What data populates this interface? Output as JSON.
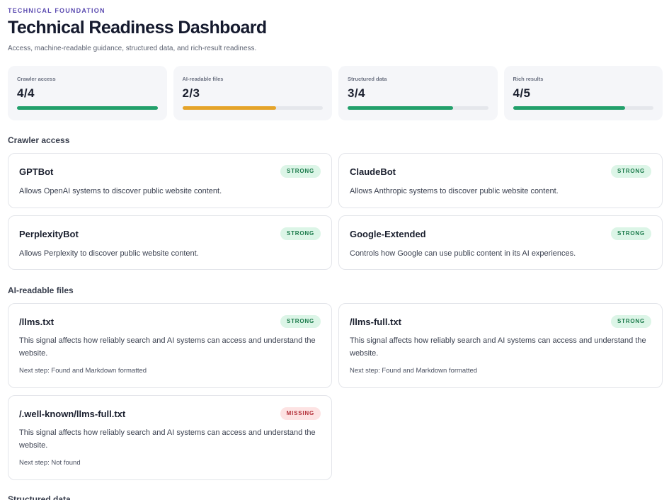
{
  "header": {
    "eyebrow": "TECHNICAL FOUNDATION",
    "title": "Technical Readiness Dashboard",
    "subtitle": "Access, machine-readable guidance, structured data, and rich-result readiness."
  },
  "metrics": [
    {
      "label": "Crawler access",
      "value": "4/4",
      "progress": 1.0,
      "color": "#22a06b"
    },
    {
      "label": "AI-readable files",
      "value": "2/3",
      "progress": 0.667,
      "color": "#e5a42a"
    },
    {
      "label": "Structured data",
      "value": "3/4",
      "progress": 0.75,
      "color": "#22a06b"
    },
    {
      "label": "Rich results",
      "value": "4/5",
      "progress": 0.8,
      "color": "#22a06b"
    }
  ],
  "sections": {
    "crawler_access": "Crawler access",
    "ai_readable_files": "AI-readable files",
    "structured_data": "Structured data"
  },
  "crawlers": [
    {
      "name": "GPTBot",
      "status": "STRONG",
      "desc": "Allows OpenAI systems to discover public website content."
    },
    {
      "name": "ClaudeBot",
      "status": "STRONG",
      "desc": "Allows Anthropic systems to discover public website content."
    },
    {
      "name": "PerplexityBot",
      "status": "STRONG",
      "desc": "Allows Perplexity to discover public website content."
    },
    {
      "name": "Google-Extended",
      "status": "STRONG",
      "desc": "Controls how Google can use public content in its AI experiences."
    }
  ],
  "files": [
    {
      "name": "/llms.txt",
      "status": "STRONG",
      "desc": "This signal affects how reliably search and AI systems can access and understand the website.",
      "step": "Next step: Found and Markdown formatted"
    },
    {
      "name": "/llms-full.txt",
      "status": "STRONG",
      "desc": "This signal affects how reliably search and AI systems can access and understand the website.",
      "step": "Next step: Found and Markdown formatted"
    },
    {
      "name": "/.well-known/llms-full.txt",
      "status": "MISSING",
      "desc": "This signal affects how reliably search and AI systems can access and understand the website.",
      "step": "Next step: Not found"
    }
  ],
  "colors": {
    "strong_bg": "#dcf5e7",
    "strong_text": "#1a7a4a",
    "missing_bg": "#fde3e3",
    "missing_text": "#b3313a",
    "accent": "#5b4bb0"
  }
}
